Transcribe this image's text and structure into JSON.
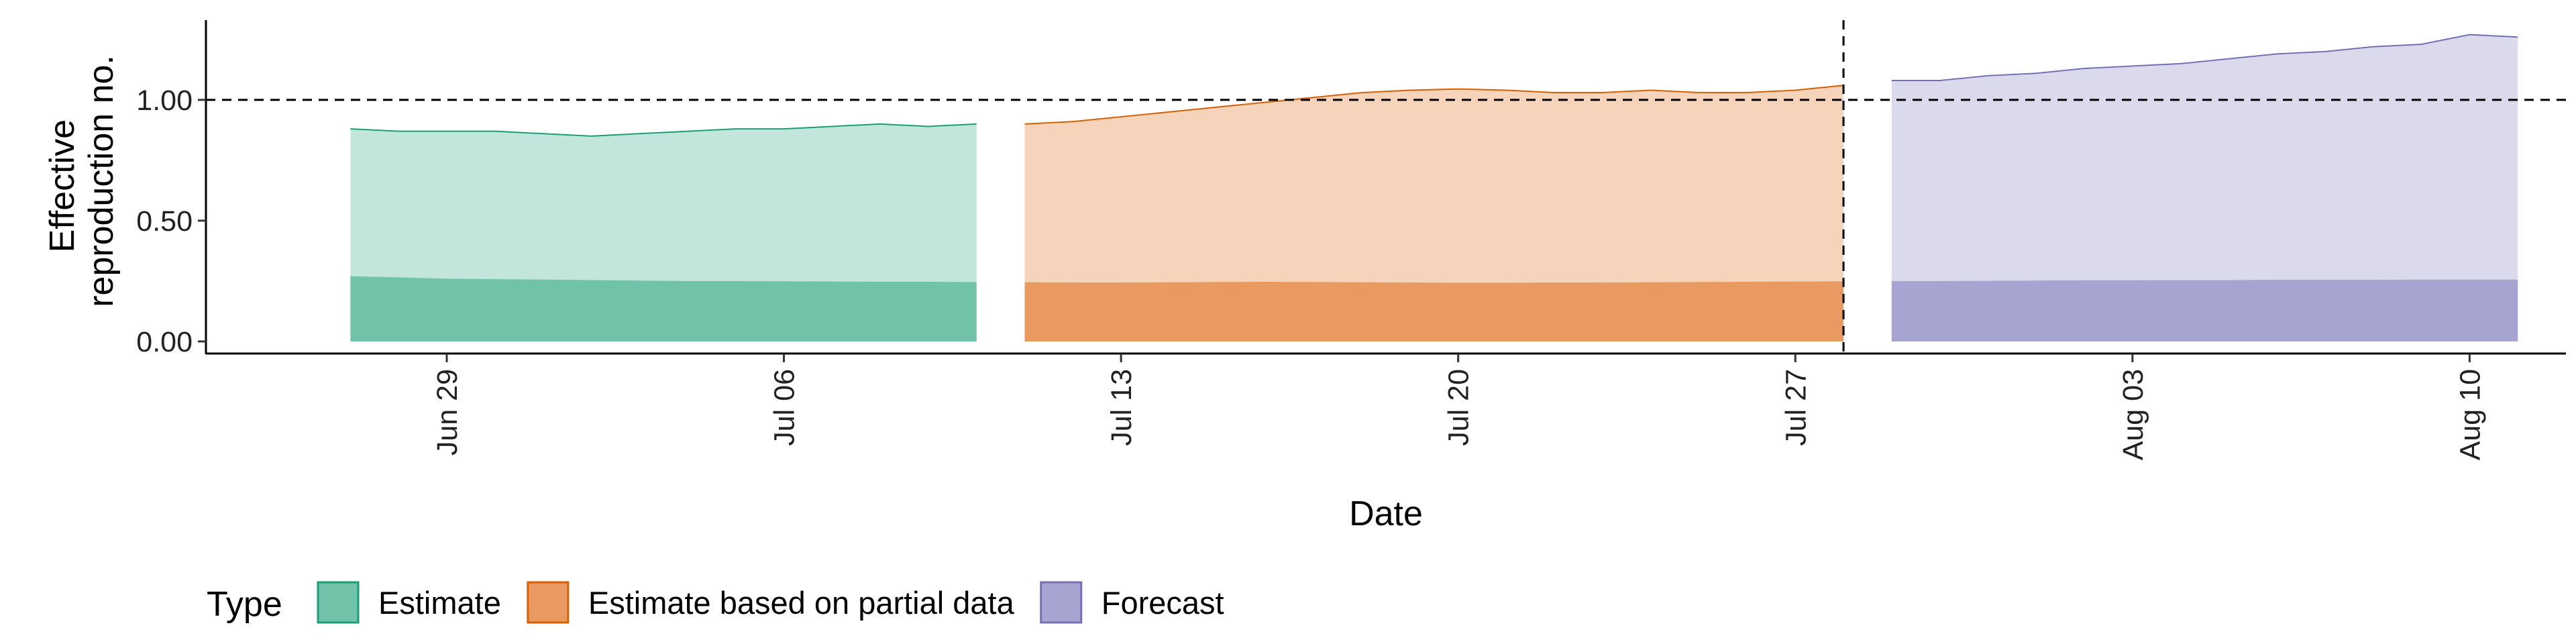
{
  "chart_data": {
    "type": "area",
    "xlabel": "Date",
    "ylabel_lines": [
      "Effective",
      "reproduction no."
    ],
    "ylim": [
      -0.05,
      1.33
    ],
    "xlim": [
      "2020-06-24",
      "2020-08-12"
    ],
    "y_ticks": [
      0.0,
      0.5,
      1.0
    ],
    "y_tick_labels": [
      "0.00",
      "0.50",
      "1.00"
    ],
    "x_ticks": [
      "2020-06-29",
      "2020-07-06",
      "2020-07-13",
      "2020-07-20",
      "2020-07-27",
      "2020-08-03",
      "2020-08-10"
    ],
    "x_tick_labels": [
      "Jun 29",
      "Jul 06",
      "Jul 13",
      "Jul 20",
      "Jul 27",
      "Aug 03",
      "Aug 10"
    ],
    "reference_hline": 1.0,
    "reference_vline": "2020-07-28",
    "legend": {
      "title": "Type",
      "position": "bottom"
    },
    "series": [
      {
        "name": "Estimate",
        "color": "#1b9e77",
        "fill_outer": "#c3e6dc",
        "fill_inner": "#70c2a8",
        "x": [
          "2020-06-27",
          "2020-06-28",
          "2020-06-29",
          "2020-06-30",
          "2020-07-01",
          "2020-07-02",
          "2020-07-03",
          "2020-07-04",
          "2020-07-05",
          "2020-07-06",
          "2020-07-07",
          "2020-07-08",
          "2020-07-09",
          "2020-07-10"
        ],
        "upper": [
          0.88,
          0.87,
          0.87,
          0.87,
          0.86,
          0.85,
          0.86,
          0.87,
          0.88,
          0.88,
          0.89,
          0.9,
          0.89,
          0.9
        ],
        "inner_upper": [
          0.27,
          0.265,
          0.26,
          0.258,
          0.256,
          0.254,
          0.252,
          0.25,
          0.25,
          0.249,
          0.248,
          0.247,
          0.247,
          0.246
        ],
        "lower": [
          0,
          0,
          0,
          0,
          0,
          0,
          0,
          0,
          0,
          0,
          0,
          0,
          0,
          0
        ]
      },
      {
        "name": "Estimate based on partial data",
        "color": "#d95f02",
        "fill_outer": "#f5d4bb",
        "fill_inner": "#e89a61",
        "x": [
          "2020-07-11",
          "2020-07-12",
          "2020-07-13",
          "2020-07-14",
          "2020-07-15",
          "2020-07-16",
          "2020-07-17",
          "2020-07-18",
          "2020-07-19",
          "2020-07-20",
          "2020-07-21",
          "2020-07-22",
          "2020-07-23",
          "2020-07-24",
          "2020-07-25",
          "2020-07-26",
          "2020-07-27",
          "2020-07-28"
        ],
        "upper": [
          0.9,
          0.91,
          0.93,
          0.95,
          0.97,
          0.99,
          1.01,
          1.03,
          1.04,
          1.045,
          1.04,
          1.03,
          1.03,
          1.04,
          1.03,
          1.03,
          1.04,
          1.06
        ],
        "inner_upper": [
          0.245,
          0.244,
          0.244,
          0.245,
          0.246,
          0.247,
          0.246,
          0.245,
          0.244,
          0.243,
          0.243,
          0.244,
          0.244,
          0.245,
          0.246,
          0.247,
          0.248,
          0.249
        ],
        "lower": [
          0,
          0,
          0,
          0,
          0,
          0,
          0,
          0,
          0,
          0,
          0,
          0,
          0,
          0,
          0,
          0,
          0,
          0
        ]
      },
      {
        "name": "Forecast",
        "color": "#7570b3",
        "fill_outer": "#dbdaec",
        "fill_inner": "#a8a4d1",
        "x": [
          "2020-07-29",
          "2020-07-30",
          "2020-07-31",
          "2020-08-01",
          "2020-08-02",
          "2020-08-03",
          "2020-08-04",
          "2020-08-05",
          "2020-08-06",
          "2020-08-07",
          "2020-08-08",
          "2020-08-09",
          "2020-08-10",
          "2020-08-11"
        ],
        "upper": [
          1.08,
          1.08,
          1.1,
          1.11,
          1.13,
          1.14,
          1.15,
          1.17,
          1.19,
          1.2,
          1.22,
          1.23,
          1.27,
          1.26
        ],
        "inner_upper": [
          0.25,
          0.25,
          0.251,
          0.252,
          0.253,
          0.253,
          0.254,
          0.254,
          0.255,
          0.255,
          0.255,
          0.256,
          0.256,
          0.256
        ],
        "lower": [
          0,
          0,
          0,
          0,
          0,
          0,
          0,
          0,
          0,
          0,
          0,
          0,
          0,
          0
        ]
      }
    ]
  }
}
